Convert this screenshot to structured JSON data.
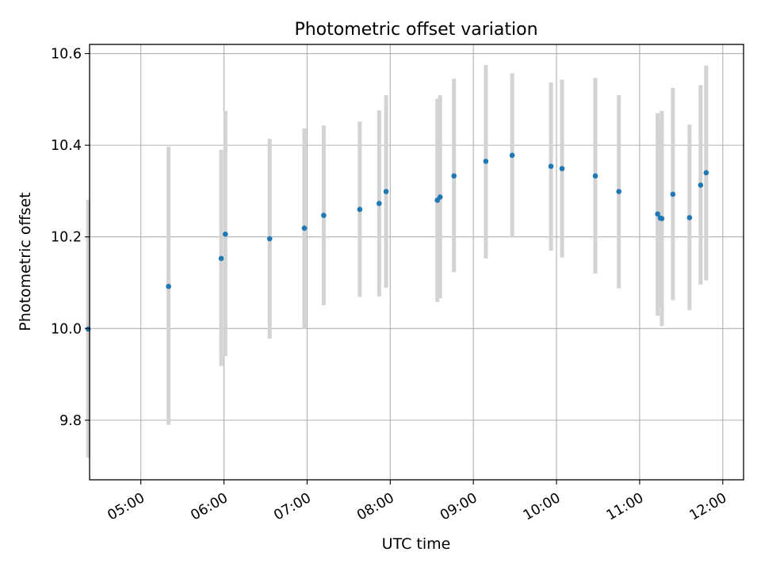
{
  "chart_data": {
    "type": "scatter",
    "title": "Photometric offset variation",
    "xlabel": "UTC time",
    "ylabel": "Photometric offset",
    "x_axis_type": "time",
    "xlim": [
      "04:23",
      "12:15"
    ],
    "ylim": [
      9.67,
      10.62
    ],
    "x_ticks": [
      "05:00",
      "06:00",
      "07:00",
      "08:00",
      "09:00",
      "10:00",
      "11:00",
      "12:00"
    ],
    "y_ticks": [
      "9.8",
      "10.0",
      "10.2",
      "10.4",
      "10.6"
    ],
    "grid": true,
    "colors": {
      "marker": "#1f77b4",
      "errorbar": "#d3d3d3",
      "grid": "#b0b0b0"
    },
    "series": [
      {
        "points": [
          {
            "time": "04:22",
            "y": 9.999,
            "y_low": 9.718,
            "y_high": 10.281
          },
          {
            "time": "05:20",
            "y": 10.092,
            "y_low": 9.79,
            "y_high": 10.397
          },
          {
            "time": "05:58",
            "y": 10.153,
            "y_low": 9.918,
            "y_high": 10.39
          },
          {
            "time": "06:01",
            "y": 10.206,
            "y_low": 9.94,
            "y_high": 10.475
          },
          {
            "time": "06:33",
            "y": 10.196,
            "y_low": 9.978,
            "y_high": 10.414
          },
          {
            "time": "06:58",
            "y": 10.219,
            "y_low": 9.999,
            "y_high": 10.437
          },
          {
            "time": "07:12",
            "y": 10.247,
            "y_low": 10.051,
            "y_high": 10.443
          },
          {
            "time": "07:38",
            "y": 10.26,
            "y_low": 10.069,
            "y_high": 10.452
          },
          {
            "time": "07:52",
            "y": 10.273,
            "y_low": 10.07,
            "y_high": 10.476
          },
          {
            "time": "07:57",
            "y": 10.299,
            "y_low": 10.089,
            "y_high": 10.509
          },
          {
            "time": "08:34",
            "y": 10.28,
            "y_low": 10.058,
            "y_high": 10.501
          },
          {
            "time": "08:36",
            "y": 10.287,
            "y_low": 10.066,
            "y_high": 10.509
          },
          {
            "time": "08:46",
            "y": 10.333,
            "y_low": 10.123,
            "y_high": 10.545
          },
          {
            "time": "09:09",
            "y": 10.365,
            "y_low": 10.153,
            "y_high": 10.575
          },
          {
            "time": "09:28",
            "y": 10.378,
            "y_low": 10.199,
            "y_high": 10.557
          },
          {
            "time": "09:56",
            "y": 10.354,
            "y_low": 10.17,
            "y_high": 10.537
          },
          {
            "time": "10:04",
            "y": 10.349,
            "y_low": 10.155,
            "y_high": 10.543
          },
          {
            "time": "10:28",
            "y": 10.333,
            "y_low": 10.12,
            "y_high": 10.547
          },
          {
            "time": "10:45",
            "y": 10.299,
            "y_low": 10.088,
            "y_high": 10.509
          },
          {
            "time": "11:13",
            "y": 10.25,
            "y_low": 10.028,
            "y_high": 10.47
          },
          {
            "time": "11:15",
            "y": 10.241,
            "y_low": 10.047,
            "y_high": 10.453
          },
          {
            "time": "11:16",
            "y": 10.24,
            "y_low": 10.005,
            "y_high": 10.475
          },
          {
            "time": "11:24",
            "y": 10.293,
            "y_low": 10.062,
            "y_high": 10.525
          },
          {
            "time": "11:36",
            "y": 10.242,
            "y_low": 10.04,
            "y_high": 10.445
          },
          {
            "time": "11:44",
            "y": 10.313,
            "y_low": 10.096,
            "y_high": 10.531
          },
          {
            "time": "11:48",
            "y": 10.34,
            "y_low": 10.105,
            "y_high": 10.574
          }
        ]
      }
    ]
  }
}
